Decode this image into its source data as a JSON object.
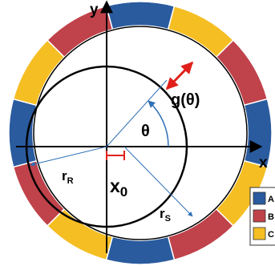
{
  "axes": {
    "x_label": "x",
    "y_label": "y"
  },
  "labels": {
    "air_gap": "g(θ)",
    "angle": "θ",
    "offset_main": "x",
    "offset_sub": "0",
    "rotor_radius_main": "r",
    "rotor_radius_sub": "R",
    "stator_radius_main": "r",
    "stator_radius_sub": "S"
  },
  "phases": [
    {
      "key": "A",
      "color": "#2a5b9e"
    },
    {
      "key": "B",
      "color": "#c0424a"
    },
    {
      "key": "C",
      "color": "#f5be23"
    }
  ],
  "stator_winding_sequence": [
    "A",
    "C",
    "B",
    "A",
    "C",
    "B",
    "A",
    "C",
    "B",
    "A",
    "C",
    "B"
  ],
  "colors": {
    "air_gap_arrow": "#e0201b",
    "rotor_radius_arrow": "#2f6fb5"
  }
}
